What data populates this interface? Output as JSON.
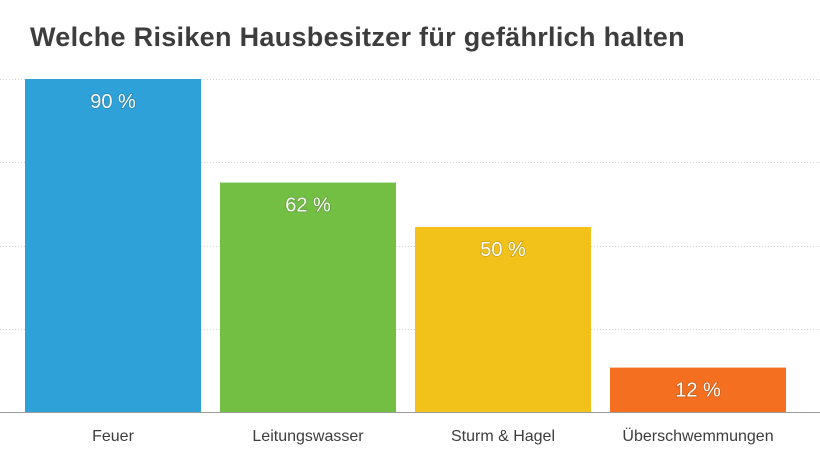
{
  "chart_data": {
    "type": "bar",
    "title": "Welche Risiken Hausbesitzer für gefährlich halten",
    "categories": [
      "Feuer",
      "Leitungswasser",
      "Sturm & Hagel",
      "Überschwemmungen"
    ],
    "values": [
      90,
      62,
      50,
      12
    ],
    "data_labels": [
      "90 %",
      "62 %",
      "50 %",
      "12 %"
    ],
    "colors": [
      "#2ea1d8",
      "#72bf44",
      "#f2c21a",
      "#f46f1f"
    ],
    "xlabel": "",
    "ylabel": "",
    "ylim": [
      0,
      90
    ],
    "grid": true,
    "gridlines": [
      0,
      22.5,
      45,
      67.5,
      90
    ],
    "legend": "none"
  }
}
